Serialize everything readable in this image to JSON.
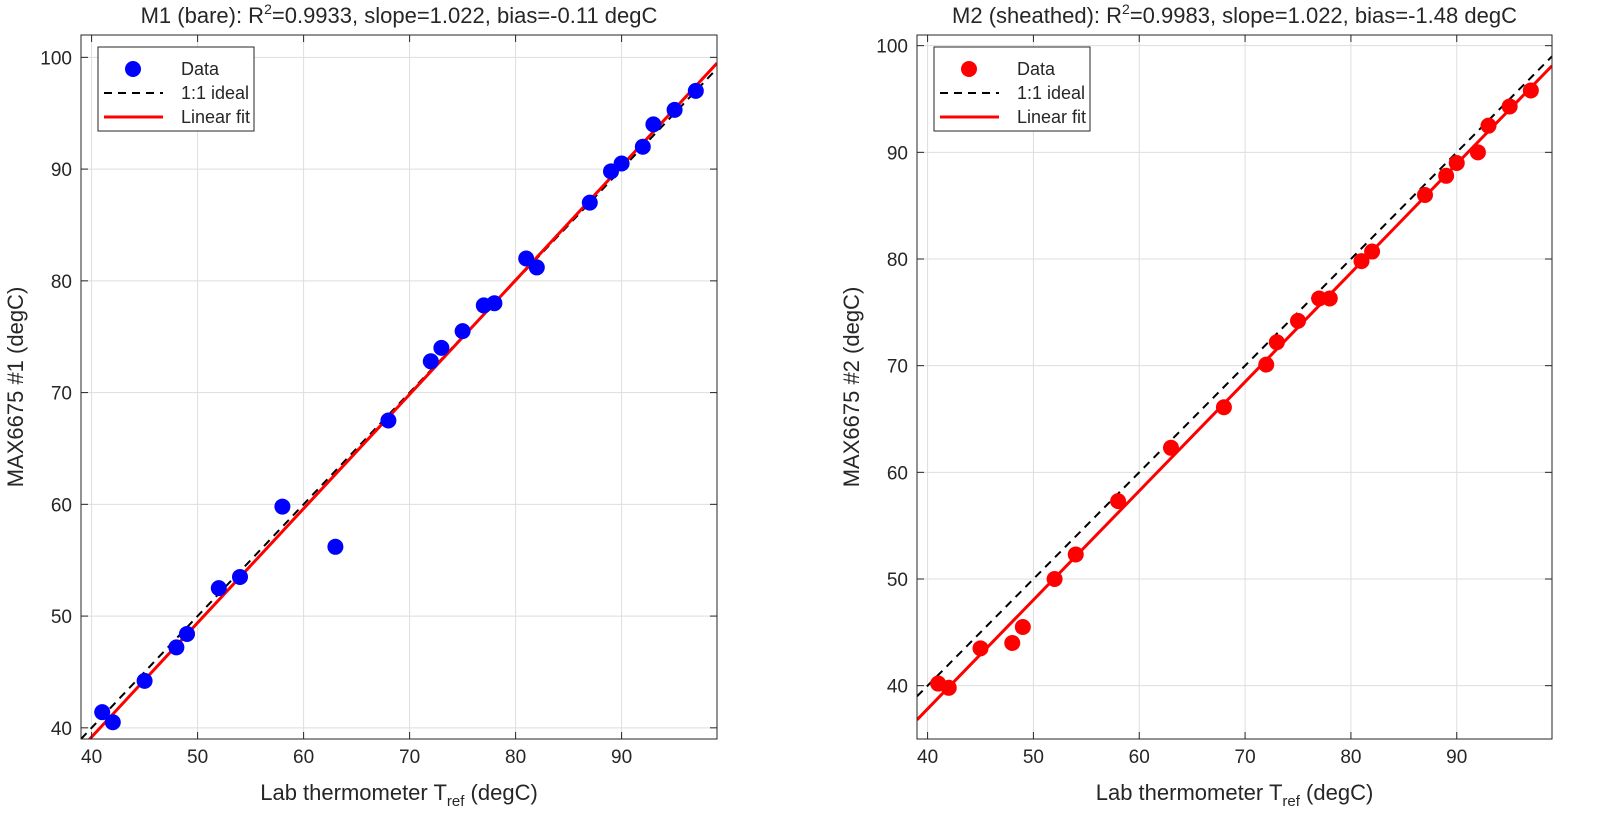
{
  "chart_data": [
    {
      "type": "scatter",
      "title": "M1 (bare): R²=0.9933, slope=1.022, bias=-0.11 degC",
      "title_parts": {
        "pre": "M1 (bare): R",
        "sup": "2",
        "post": "=0.9933, slope=1.022, bias=-0.11 degC"
      },
      "xlabel": "Lab thermometer T",
      "xlabel_parts": {
        "pre": "Lab thermometer T",
        "sub": "ref",
        "post": " (degC)"
      },
      "ylabel": "MAX6675 #1 (degC)",
      "xlim": [
        39,
        99
      ],
      "ylim": [
        39,
        102
      ],
      "xticks": [
        40,
        50,
        60,
        70,
        80,
        90
      ],
      "yticks": [
        40,
        50,
        60,
        70,
        80,
        90,
        100
      ],
      "grid": true,
      "legend_position": "top-left",
      "legend": [
        "Data",
        "1:1 ideal",
        "Linear fit"
      ],
      "colors": {
        "data": "#0000ff",
        "ideal": "#000000",
        "fit": "#ff0000"
      },
      "fit": {
        "slope": 1.022,
        "intercept": -1.7
      },
      "ideal": {
        "slope": 1.0,
        "intercept": 0.0
      },
      "series": [
        {
          "name": "Data",
          "x": [
            41,
            42,
            45,
            48,
            49,
            52,
            54,
            58,
            63,
            68,
            72,
            73,
            75,
            77,
            78,
            81,
            82,
            87,
            89,
            90,
            92,
            93,
            95,
            97
          ],
          "y": [
            41.4,
            40.5,
            44.2,
            47.2,
            48.4,
            52.5,
            53.5,
            59.8,
            56.2,
            67.5,
            72.8,
            74.0,
            75.5,
            77.8,
            78.0,
            82.0,
            81.2,
            87.0,
            89.8,
            90.5,
            92.0,
            94.0,
            95.3,
            97.0
          ]
        }
      ]
    },
    {
      "type": "scatter",
      "title": "M2 (sheathed): R²=0.9983, slope=1.022, bias=-1.48 degC",
      "title_parts": {
        "pre": "M2 (sheathed): R",
        "sup": "2",
        "post": "=0.9983, slope=1.022, bias=-1.48 degC"
      },
      "xlabel": "Lab thermometer T",
      "xlabel_parts": {
        "pre": "Lab thermometer T",
        "sub": "ref",
        "post": " (degC)"
      },
      "ylabel": "MAX6675 #2 (degC)",
      "xlim": [
        39,
        99
      ],
      "ylim": [
        35,
        101
      ],
      "xticks": [
        40,
        50,
        60,
        70,
        80,
        90
      ],
      "yticks": [
        40,
        50,
        60,
        70,
        80,
        90,
        100
      ],
      "grid": true,
      "legend_position": "top-left",
      "legend": [
        "Data",
        "1:1 ideal",
        "Linear fit"
      ],
      "colors": {
        "data": "#ff0000",
        "ideal": "#000000",
        "fit": "#ff0000"
      },
      "fit": {
        "slope": 1.022,
        "intercept": -3.06
      },
      "ideal": {
        "slope": 1.0,
        "intercept": 0.0
      },
      "series": [
        {
          "name": "Data",
          "x": [
            41,
            42,
            45,
            48,
            49,
            52,
            54,
            58,
            63,
            68,
            72,
            73,
            75,
            77,
            78,
            81,
            82,
            87,
            89,
            90,
            92,
            93,
            95,
            97
          ],
          "y": [
            40.2,
            39.8,
            43.5,
            44.0,
            45.5,
            50.0,
            52.3,
            57.3,
            62.3,
            66.1,
            70.1,
            72.2,
            74.2,
            76.3,
            76.3,
            79.8,
            80.7,
            86.0,
            87.8,
            89.0,
            90.0,
            92.5,
            94.3,
            95.8
          ]
        }
      ]
    }
  ]
}
